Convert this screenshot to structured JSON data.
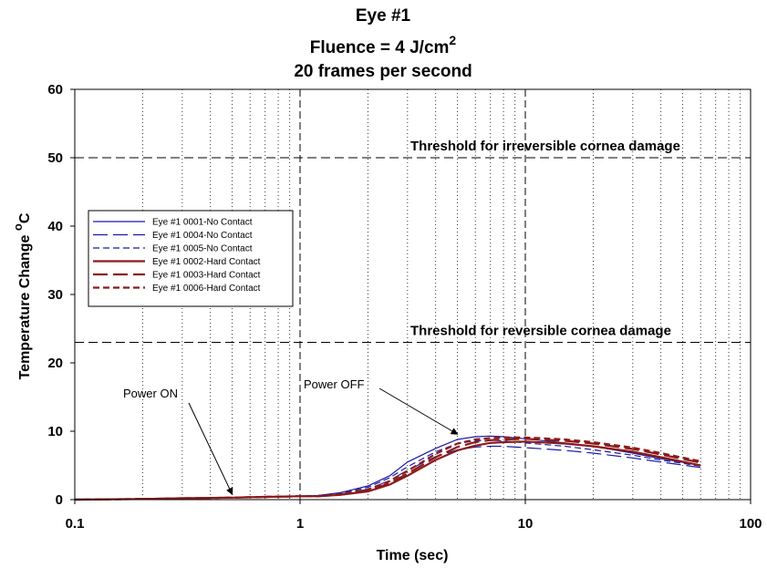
{
  "chart_data": {
    "type": "line",
    "title_line1": "Eye #1",
    "title_line2_main": "Fluence = 4 J/cm",
    "title_line2_sup": "2",
    "title_line3": "20 frames per second",
    "xlabel": "Time (sec)",
    "ylabel_main": "Temperature Change ",
    "ylabel_sup": "o",
    "ylabel_end": "C",
    "x_scale": "log",
    "xlim": [
      0.1,
      100
    ],
    "ylim": [
      0,
      60
    ],
    "x_ticks": [
      0.1,
      1,
      10,
      100
    ],
    "x_tick_labels": [
      "0.1",
      "1",
      "10",
      "100"
    ],
    "y_ticks": [
      0,
      10,
      20,
      30,
      40,
      50,
      60
    ],
    "y_tick_labels": [
      "0",
      "10",
      "20",
      "30",
      "40",
      "50",
      "60"
    ],
    "grid": "vertical dotted minor lines on log x axis",
    "legend_position": "left-middle",
    "reference_lines": [
      {
        "y": 50,
        "label": "Threshold for irreversible cornea damage"
      },
      {
        "y": 23,
        "label": "Threshold for reversible cornea damage"
      }
    ],
    "vertical_markers": [
      1,
      10
    ],
    "annotations": [
      {
        "text": "Power ON",
        "x": 0.5,
        "y": 0.5
      },
      {
        "text": "Power OFF",
        "x": 5,
        "y": 9.3
      }
    ],
    "series": [
      {
        "name": "Eye #1 0001-No Contact",
        "color": "#1a1aa6",
        "dash": "solid",
        "x": [
          0.1,
          0.2,
          0.3,
          0.5,
          0.7,
          1,
          1.2,
          1.5,
          2,
          2.5,
          3,
          4,
          5,
          6,
          7,
          8,
          10,
          15,
          20,
          30,
          40,
          60
        ],
        "y": [
          0,
          0.1,
          0.2,
          0.3,
          0.4,
          0.5,
          0.6,
          1,
          2,
          3.5,
          5.5,
          7.5,
          8.8,
          9.2,
          9.3,
          9.2,
          8.9,
          8.3,
          7.8,
          6.8,
          6,
          5
        ]
      },
      {
        "name": "Eye #1 0004-No Contact",
        "color": "#1a1aa6",
        "dash": "long",
        "x": [
          0.1,
          0.2,
          0.3,
          0.5,
          0.7,
          1,
          1.2,
          1.5,
          2,
          2.5,
          3,
          4,
          5,
          6,
          7,
          8,
          10,
          15,
          20,
          30,
          40,
          60
        ],
        "y": [
          0,
          0.1,
          0.2,
          0.3,
          0.4,
          0.5,
          0.5,
          0.8,
          1.5,
          2.8,
          4.3,
          6.3,
          7.3,
          7.7,
          7.8,
          7.8,
          7.6,
          7.2,
          6.8,
          6.1,
          5.5,
          4.7
        ]
      },
      {
        "name": "Eye #1 0005-No Contact",
        "color": "#1a1aa6",
        "dash": "medium",
        "x": [
          0.1,
          0.2,
          0.3,
          0.5,
          0.7,
          1,
          1.2,
          1.5,
          2,
          2.5,
          3,
          4,
          5,
          6,
          7,
          8,
          10,
          15,
          20,
          30,
          40,
          60
        ],
        "y": [
          0,
          0.1,
          0.2,
          0.3,
          0.4,
          0.5,
          0.6,
          0.9,
          1.8,
          3.2,
          4.8,
          7,
          8.2,
          8.6,
          8.7,
          8.6,
          8.3,
          7.8,
          7.3,
          6.5,
          5.8,
          4.9
        ]
      },
      {
        "name": "Eye #1 0002-Hard Contact",
        "color": "#8b1a1a",
        "dash": "solid",
        "x": [
          0.1,
          0.2,
          0.3,
          0.5,
          0.7,
          1,
          1.2,
          1.5,
          2,
          2.5,
          3,
          4,
          5,
          6,
          7,
          8,
          10,
          15,
          20,
          30,
          40,
          60
        ],
        "y": [
          0,
          0.1,
          0.2,
          0.3,
          0.4,
          0.5,
          0.5,
          0.7,
          1.2,
          2.2,
          3.5,
          5.8,
          7.2,
          7.9,
          8.3,
          8.4,
          8.5,
          8.2,
          7.8,
          7,
          6.2,
          5
        ]
      },
      {
        "name": "Eye #1 0003-Hard Contact",
        "color": "#8b1a1a",
        "dash": "long",
        "x": [
          0.1,
          0.2,
          0.3,
          0.5,
          0.7,
          1,
          1.2,
          1.5,
          2,
          2.5,
          3,
          4,
          5,
          6,
          7,
          8,
          10,
          15,
          20,
          30,
          40,
          60
        ],
        "y": [
          0,
          0.1,
          0.2,
          0.3,
          0.4,
          0.5,
          0.5,
          0.7,
          1.3,
          2.4,
          3.8,
          6.2,
          7.7,
          8.4,
          8.7,
          8.8,
          8.9,
          8.6,
          8.2,
          7.4,
          6.6,
          5.4
        ]
      },
      {
        "name": "Eye #1 0006-Hard Contact",
        "color": "#8b1a1a",
        "dash": "medium",
        "x": [
          0.1,
          0.2,
          0.3,
          0.5,
          0.7,
          1,
          1.2,
          1.5,
          2,
          2.5,
          3,
          4,
          5,
          6,
          7,
          8,
          10,
          15,
          20,
          30,
          40,
          60
        ],
        "y": [
          0,
          0.1,
          0.2,
          0.3,
          0.4,
          0.5,
          0.5,
          0.8,
          1.5,
          2.7,
          4.2,
          6.7,
          8.2,
          8.8,
          9,
          9.1,
          9.1,
          8.8,
          8.4,
          7.6,
          6.8,
          5.6
        ]
      }
    ]
  }
}
